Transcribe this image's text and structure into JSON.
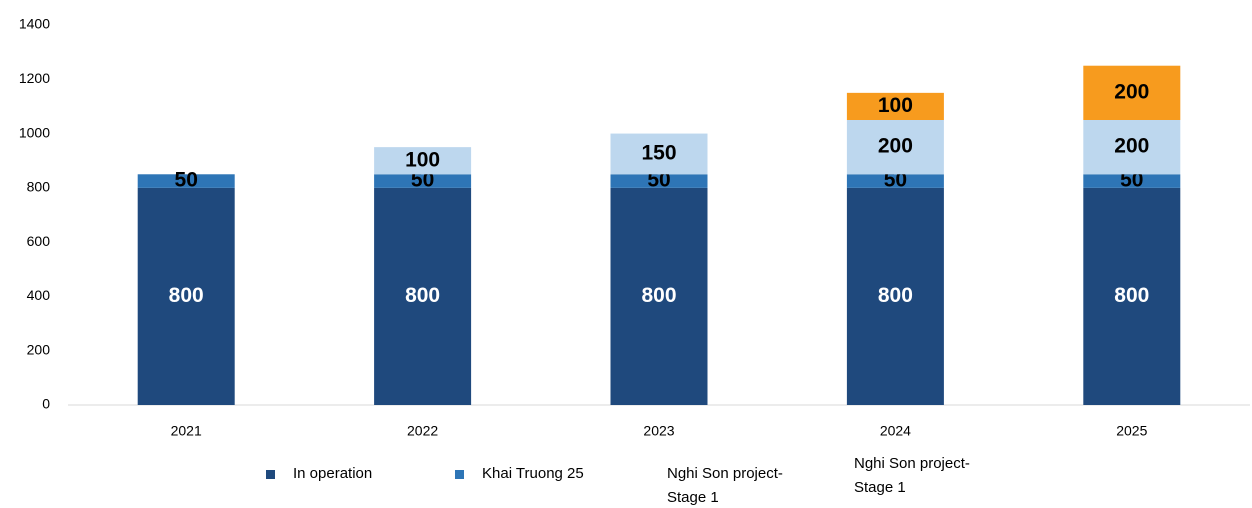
{
  "chart_data": {
    "type": "stacked_bar",
    "categories": [
      "2021",
      "2022",
      "2023",
      "2024",
      "2025"
    ],
    "series": [
      {
        "name": "In operation",
        "color": "#1f497d",
        "values": [
          800,
          800,
          800,
          800,
          800
        ]
      },
      {
        "name": "Khai Truong 25",
        "color": "#2e75b6",
        "values": [
          50,
          50,
          50,
          50,
          50
        ]
      },
      {
        "name": "Nghi Son project-Stage 1",
        "color": "#bdd7ee",
        "values": [
          null,
          100,
          150,
          200,
          200
        ]
      },
      {
        "name": "Nghi Son project-Stage 1",
        "color": "#f79b1e",
        "values": [
          null,
          null,
          null,
          100,
          200
        ]
      }
    ],
    "ylim": [
      0,
      1400
    ],
    "yticks": [
      0,
      200,
      400,
      600,
      800,
      1000,
      1200,
      1400
    ],
    "grid": false
  }
}
